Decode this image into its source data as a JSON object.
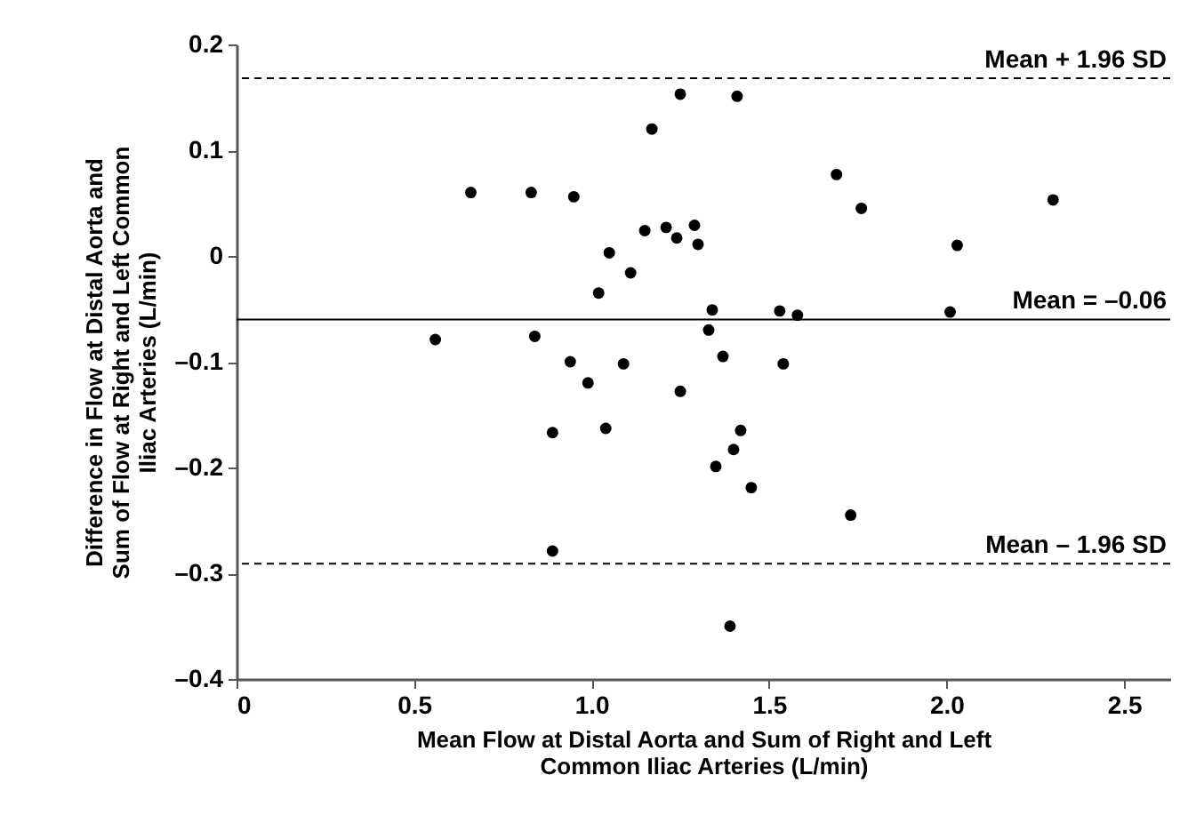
{
  "chart_data": {
    "type": "scatter",
    "xlabel": "Mean Flow at Distal Aorta and Sum of Right and Left\nCommon Iliac Arteries (L/min)",
    "ylabel": "Difference in Flow at Distal Aorta and\nSum of Flow at Right and Left Common\nIliac Arteries (L/min)",
    "x": [
      0.66,
      0.83,
      0.95,
      1.17,
      1.25,
      1.05,
      1.02,
      1.11,
      1.15,
      1.21,
      1.24,
      1.29,
      1.3,
      1.34,
      1.33,
      0.56,
      0.84,
      0.94,
      0.99,
      1.09,
      1.25,
      1.41,
      1.69,
      1.76,
      2.3,
      2.03,
      1.53,
      1.58,
      2.01,
      1.37,
      1.54,
      0.89,
      1.04,
      0.89,
      1.42,
      1.4,
      1.35,
      1.45,
      1.73,
      1.39
    ],
    "series": [
      {
        "color": "#000000",
        "values": [
          0.06,
          0.06,
          0.056,
          0.12,
          0.153,
          0.003,
          -0.035,
          -0.016,
          0.024,
          0.027,
          0.017,
          0.029,
          0.011,
          -0.051,
          -0.07,
          -0.079,
          -0.076,
          -0.1,
          -0.12,
          -0.102,
          -0.128,
          0.151,
          0.077,
          0.045,
          0.053,
          0.01,
          -0.052,
          -0.056,
          -0.053,
          -0.095,
          -0.102,
          -0.167,
          -0.163,
          -0.279,
          -0.165,
          -0.183,
          -0.199,
          -0.219,
          -0.245,
          -0.35
        ]
      }
    ],
    "xlim": [
      0,
      2.63
    ],
    "xticks": [
      0,
      0.5,
      {
        "value": 1,
        "label": "1.0"
      },
      1.5,
      {
        "value": 2,
        "label": "2.0"
      },
      2.5
    ],
    "ylim": [
      -0.4,
      0.2
    ],
    "yticks": [
      {
        "value": -0.4,
        "label": "–0.4"
      },
      {
        "value": -0.3,
        "label": "–0.3"
      },
      {
        "value": -0.2,
        "label": "–0.2"
      },
      {
        "value": -0.1,
        "label": "–0.1"
      },
      0,
      0.1,
      0.2
    ],
    "ref_lines": [
      {
        "axis": "y",
        "value": 0.168,
        "label": "Mean + 1.96 SD",
        "line_style": "dashed"
      },
      {
        "axis": "y",
        "value": -0.06,
        "label": "Mean = –0.06",
        "line_style": "solid"
      },
      {
        "axis": "y",
        "value": -0.291,
        "label": "Mean – 1.96 SD",
        "line_style": "dashed"
      }
    ],
    "marker": "circle",
    "grid": false
  }
}
